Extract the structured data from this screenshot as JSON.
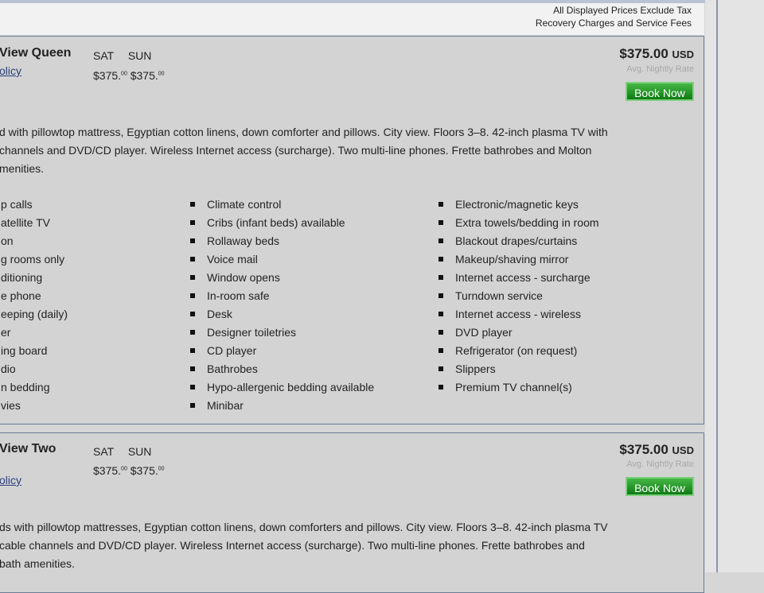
{
  "notice": [
    "All Displayed Prices Exclude Tax",
    "Recovery Charges and Service Fees"
  ],
  "rooms": [
    {
      "name": "View Queen",
      "policy": "olicy",
      "days": "SAT SUN",
      "night_prices": [
        "$375.",
        "$375."
      ],
      "cents": "00",
      "price": "$375.00",
      "currency": "USD",
      "avg": "Avg. Nightly Rate",
      "book": "Book Now",
      "desc": [
        "d with pillowtop mattress, Egyptian cotton linens, down comforter and pillows. City view. Floors 3–8. 42-inch plasma TV with",
        "channels and DVD/CD player. Wireless Internet access (surcharge). Two multi-line phones. Frette bathrobes and Molton",
        "menities."
      ],
      "amenities": [
        [
          "p calls",
          "atellite TV",
          "on",
          "g rooms only",
          "ditioning",
          "e phone",
          "eeping (daily)",
          "er",
          "ing board",
          "dio",
          "n bedding",
          "vies"
        ],
        [
          "Climate control",
          "Cribs (infant beds) available",
          "Rollaway beds",
          "Voice mail",
          "Window opens",
          "In-room safe",
          "Desk",
          "Designer toiletries",
          "CD player",
          "Bathrobes",
          "Hypo-allergenic bedding available",
          "Minibar"
        ],
        [
          "Electronic/magnetic keys",
          "Extra towels/bedding in room",
          "Blackout drapes/curtains",
          "Makeup/shaving mirror",
          "Internet access - surcharge",
          "Turndown service",
          "Internet access - wireless",
          "DVD player",
          "Refrigerator (on request)",
          "Slippers",
          "Premium TV channel(s)"
        ]
      ]
    },
    {
      "name": "View Two",
      "policy": "olicy",
      "days": "SAT SUN",
      "night_prices": [
        "$375.",
        "$375."
      ],
      "cents": "00",
      "price": "$375.00",
      "currency": "USD",
      "avg": "Avg. Nightly Rate",
      "book": "Book Now",
      "desc": [
        "ds with pillowtop mattresses, Egyptian cotton linens, down comforters and pillows. City view. Floors 3–8. 42-inch plasma TV",
        "cable channels and DVD/CD player. Wireless Internet access (surcharge). Two multi-line phones. Frette bathrobes and",
        "bath amenities."
      ]
    }
  ]
}
